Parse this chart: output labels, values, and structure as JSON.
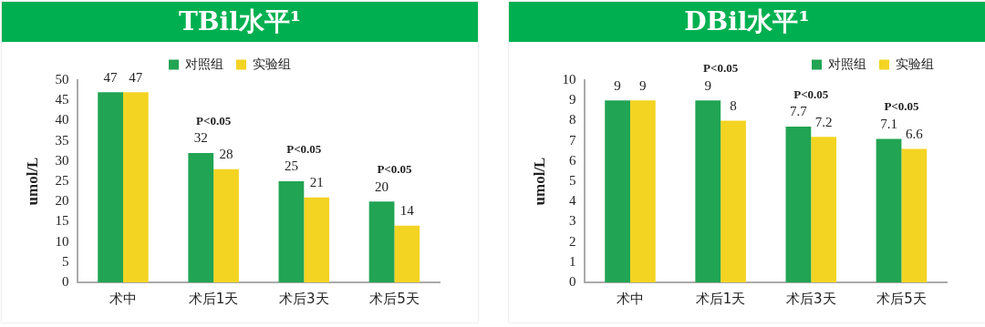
{
  "chart_data": [
    {
      "type": "bar",
      "title": "TBil水平¹",
      "ylabel": "umol/L",
      "categories": [
        "术中",
        "术后1天",
        "术后3天",
        "术后5天"
      ],
      "series": [
        {
          "name": "对照组",
          "color": "#21a453",
          "values": [
            47,
            32,
            25,
            20
          ]
        },
        {
          "name": "实验组",
          "color": "#f3d422",
          "values": [
            47,
            28,
            21,
            14
          ]
        }
      ],
      "ylim": [
        0,
        50
      ],
      "yticks": [
        0,
        5,
        10,
        15,
        20,
        25,
        30,
        35,
        40,
        45,
        50
      ],
      "grid": false,
      "legend": "top",
      "data_labels": true,
      "annotations": [
        "P<0.05",
        "P<0.05",
        "P<0.05"
      ]
    },
    {
      "type": "bar",
      "title": "DBil水平¹",
      "ylabel": "umol/L",
      "categories": [
        "术中",
        "术后1天",
        "术后3天",
        "术后5天"
      ],
      "series": [
        {
          "name": "对照组",
          "color": "#21a453",
          "values": [
            9,
            9,
            7.7,
            7.1
          ]
        },
        {
          "name": "实验组",
          "color": "#f3d422",
          "values": [
            9,
            8,
            7.2,
            6.6
          ]
        }
      ],
      "ylim": [
        0,
        10
      ],
      "yticks": [
        0,
        1,
        2,
        3,
        4,
        5,
        6,
        7,
        8,
        9,
        10
      ],
      "grid": false,
      "legend": "top right",
      "data_labels": true,
      "annotations": [
        "P<0.05",
        "P<0.05",
        "P<0.05"
      ]
    }
  ]
}
